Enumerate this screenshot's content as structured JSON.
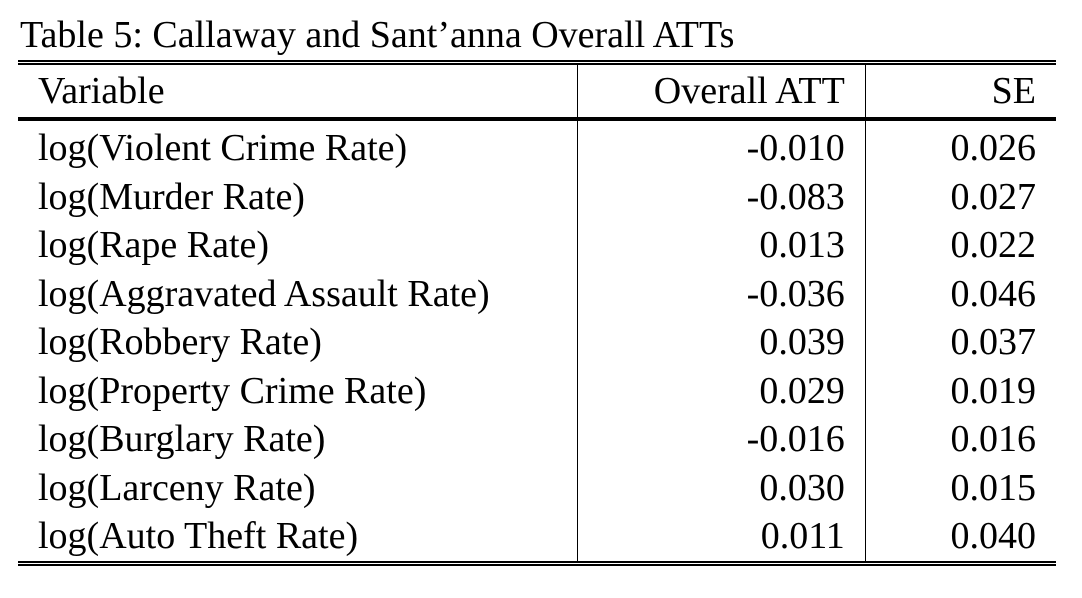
{
  "caption": "Table 5: Callaway and Sant’anna Overall ATTs",
  "columns": [
    "Variable",
    "Overall ATT",
    "SE"
  ],
  "rows": [
    {
      "variable": "log(Violent Crime Rate)",
      "att": "-0.010",
      "se": "0.026"
    },
    {
      "variable": "log(Murder Rate)",
      "att": "-0.083",
      "se": "0.027"
    },
    {
      "variable": "log(Rape Rate)",
      "att": "0.013",
      "se": "0.022"
    },
    {
      "variable": "log(Aggravated Assault Rate)",
      "att": "-0.036",
      "se": "0.046"
    },
    {
      "variable": "log(Robbery Rate)",
      "att": "0.039",
      "se": "0.037"
    },
    {
      "variable": "log(Property Crime Rate)",
      "att": "0.029",
      "se": "0.019"
    },
    {
      "variable": "log(Burglary Rate)",
      "att": "-0.016",
      "se": "0.016"
    },
    {
      "variable": "log(Larceny Rate)",
      "att": "0.030",
      "se": "0.015"
    },
    {
      "variable": "log(Auto Theft Rate)",
      "att": "0.011",
      "se": "0.040"
    }
  ]
}
